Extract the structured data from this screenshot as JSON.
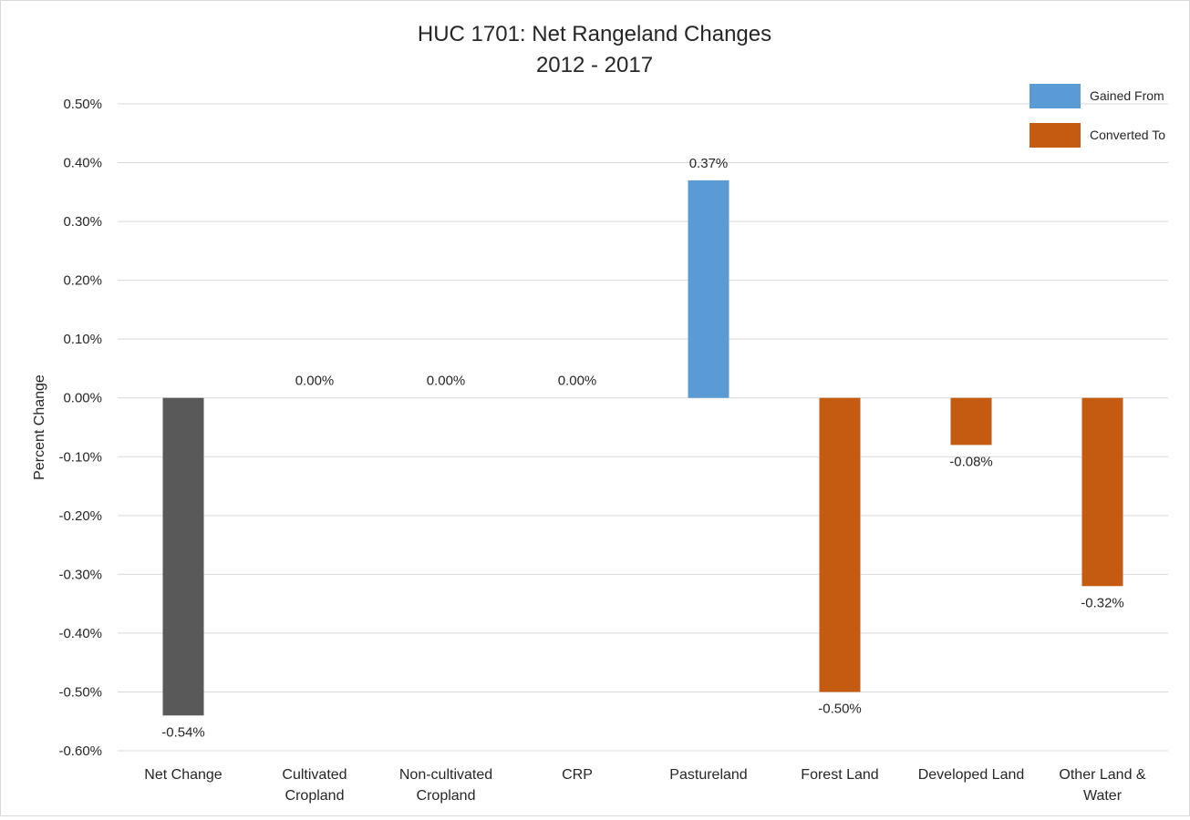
{
  "chart_data": {
    "type": "bar",
    "title_lines": [
      "HUC 1701: Net Rangeland Changes",
      "2012 - 2017"
    ],
    "xlabel": "",
    "ylabel": "Percent Change",
    "ylim": [
      -0.6,
      0.5
    ],
    "ytick_step": 0.1,
    "ytick_labels": [
      "0.50%",
      "0.40%",
      "0.30%",
      "0.20%",
      "0.10%",
      "0.00%",
      "-0.10%",
      "-0.20%",
      "-0.30%",
      "-0.40%",
      "-0.50%",
      "-0.60%"
    ],
    "grid": true,
    "legend_position": "top-right",
    "categories": [
      [
        "Net Change"
      ],
      [
        "Cultivated",
        "Cropland"
      ],
      [
        "Non-cultivated",
        "Cropland"
      ],
      [
        "CRP"
      ],
      [
        "Pastureland"
      ],
      [
        "Forest Land"
      ],
      [
        "Developed Land"
      ],
      [
        "Other Land &",
        "Water"
      ]
    ],
    "values": [
      -0.54,
      0.0,
      0.0,
      0.0,
      0.37,
      -0.5,
      -0.08,
      -0.32
    ],
    "data_labels": [
      "-0.54%",
      "0.00%",
      "0.00%",
      "0.00%",
      "0.37%",
      "-0.50%",
      "-0.08%",
      "-0.32%"
    ],
    "bar_groups": [
      "net",
      "converted",
      "converted",
      "converted",
      "gained",
      "converted",
      "converted",
      "converted"
    ],
    "legend": [
      {
        "key": "gained",
        "label": "Gained From",
        "color": "#5b9bd5"
      },
      {
        "key": "converted",
        "label": "Converted To",
        "color": "#c55a11"
      }
    ],
    "colors": {
      "net": "#595959",
      "gained": "#5b9bd5",
      "converted": "#c55a11",
      "grid": "#d9d9d9",
      "text": "#262626"
    }
  }
}
